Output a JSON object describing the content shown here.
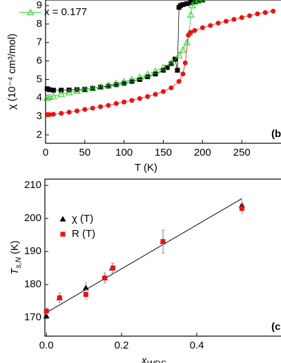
{
  "chart_data": [
    {
      "type": "line",
      "panel_label": "(b",
      "x_label": "T (K)",
      "y_label": "χ (10⁻⁴ cm³/mol)",
      "xlim": [
        0,
        300
      ],
      "ylim": [
        1.55,
        9.3
      ],
      "xticks": [
        0,
        50,
        100,
        150,
        200,
        250
      ],
      "yticks": [
        2,
        3,
        4,
        5,
        6,
        7,
        8,
        9
      ],
      "series": [
        {
          "color": "#000000",
          "marker": "square",
          "x": [
            2,
            5,
            10,
            20,
            30,
            40,
            50,
            60,
            70,
            80,
            90,
            100,
            110,
            120,
            130,
            140,
            150,
            155,
            160,
            165,
            168,
            170,
            172,
            175,
            180,
            185,
            190,
            195,
            200
          ],
          "values": [
            4.5,
            4.45,
            4.42,
            4.42,
            4.43,
            4.45,
            4.47,
            4.52,
            4.58,
            4.64,
            4.72,
            4.8,
            4.9,
            5.0,
            5.15,
            5.3,
            5.5,
            5.65,
            5.85,
            6.1,
            5.5,
            8.9,
            9.0,
            9.05,
            9.1,
            9.15,
            9.2,
            9.25,
            9.3
          ]
        },
        {
          "name": "x = 0.177",
          "color": "#22cc22",
          "marker": "triangle-open",
          "x": [
            2,
            5,
            10,
            20,
            30,
            40,
            50,
            60,
            70,
            80,
            90,
            100,
            110,
            120,
            130,
            140,
            150,
            160,
            170,
            175,
            180,
            183,
            185,
            187,
            190,
            195,
            200
          ],
          "values": [
            4.0,
            4.05,
            4.1,
            4.2,
            4.3,
            4.38,
            4.45,
            4.52,
            4.6,
            4.68,
            4.78,
            4.88,
            5.0,
            5.12,
            5.28,
            5.45,
            5.65,
            5.9,
            6.3,
            6.6,
            7.0,
            7.5,
            8.5,
            9.0,
            9.2,
            9.3,
            9.4
          ]
        },
        {
          "color": "#ee1111",
          "marker": "circle",
          "x": [
            2,
            5,
            10,
            20,
            30,
            40,
            50,
            60,
            70,
            80,
            90,
            100,
            110,
            120,
            130,
            140,
            150,
            160,
            170,
            175,
            178,
            182,
            185,
            190,
            200,
            210,
            220,
            230,
            240,
            250,
            260,
            270,
            280,
            290
          ],
          "values": [
            3.1,
            3.1,
            3.12,
            3.17,
            3.23,
            3.3,
            3.38,
            3.45,
            3.53,
            3.6,
            3.7,
            3.78,
            3.87,
            3.97,
            4.08,
            4.2,
            4.35,
            4.55,
            4.9,
            5.3,
            5.9,
            7.4,
            7.55,
            7.65,
            7.8,
            7.92,
            8.05,
            8.15,
            8.25,
            8.35,
            8.45,
            8.55,
            8.62,
            8.7
          ]
        }
      ]
    },
    {
      "type": "scatter",
      "panel_label": "(c",
      "x_label": {
        "main": "x",
        "sub": "WDS"
      },
      "y_label": {
        "main": "T",
        "sub": "s,N",
        "unit": " (K)"
      },
      "xlim": [
        -0.004,
        0.624
      ],
      "ylim": [
        164.4,
        211.9
      ],
      "xticks": [
        {
          "value": 0,
          "label": "0.0"
        },
        0.2,
        0.4
      ],
      "yticks": [
        170,
        180,
        190,
        200,
        210
      ],
      "fit": {
        "x": [
          0,
          0.52
        ],
        "y": [
          171.5,
          206
        ]
      },
      "series": [
        {
          "name": "χ (T)",
          "color": "#000000",
          "marker": "triangle",
          "x": [
            0,
            0.035,
            0.105,
            0.155,
            0.175,
            0.31,
            0.52
          ],
          "values": [
            170.5,
            176,
            179,
            182,
            185,
            193,
            204
          ],
          "errors": [
            1,
            1.5,
            1.5,
            1.5,
            1.5,
            3.5,
            1.5
          ]
        },
        {
          "name": "R (T)",
          "color": "#ee1111",
          "marker": "square",
          "x": [
            0,
            0.035,
            0.105,
            0.155,
            0.177,
            0.31,
            0.52
          ],
          "values": [
            172,
            176,
            177,
            182,
            185,
            193,
            203
          ],
          "errors": [
            1,
            1.5,
            1.5,
            1.5,
            1.5,
            3.5,
            1.5
          ]
        }
      ]
    }
  ]
}
